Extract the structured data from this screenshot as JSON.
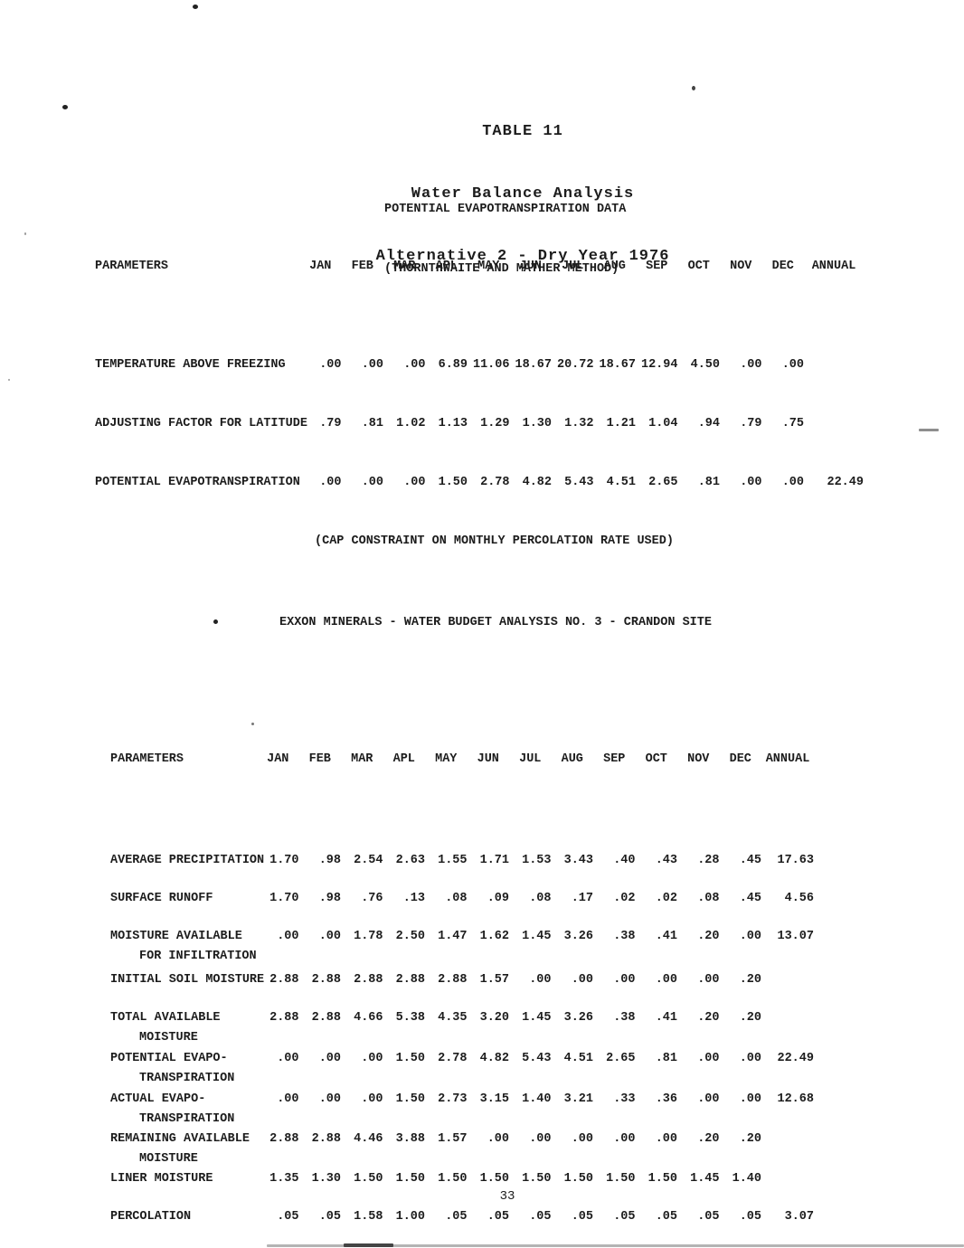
{
  "page": {
    "title_lines": [
      "TABLE 11",
      "Water Balance Analysis",
      "Alternative 2 - Dry Year 1976"
    ],
    "subtitle_lines": [
      "POTENTIAL EVAPOTRANSPIRATION DATA",
      "(THORNTHWAITE AND MATHER METHOD)"
    ],
    "note": "(CAP CONSTRAINT ON MONTHLY PERCOLATION RATE USED)",
    "section_heading": "EXXON MINERALS - WATER BUDGET ANALYSIS NO. 3 - CRANDON SITE",
    "page_number": "33",
    "ink_color": "#1c1c1c",
    "paper_color": "#ffffff"
  },
  "evapotranspiration_table": {
    "columns": [
      "PARAMETERS",
      "JAN",
      "FEB",
      "MAR",
      "APL",
      "MAY",
      "JUN",
      "JUL",
      "AUG",
      "SEP",
      "OCT",
      "NOV",
      "DEC",
      "ANNUAL"
    ],
    "rows": [
      {
        "label": [
          "TEMPERATURE ABOVE FREEZING"
        ],
        "values": [
          ".00",
          ".00",
          ".00",
          "6.89",
          "11.06",
          "18.67",
          "20.72",
          "18.67",
          "12.94",
          "4.50",
          ".00",
          ".00"
        ],
        "annual": ""
      },
      {
        "label": [
          "ADJUSTING FACTOR FOR LATITUDE"
        ],
        "values": [
          ".79",
          ".81",
          "1.02",
          "1.13",
          "1.29",
          "1.30",
          "1.32",
          "1.21",
          "1.04",
          ".94",
          ".79",
          ".75"
        ],
        "annual": ""
      },
      {
        "label": [
          "POTENTIAL EVAPOTRANSPIRATION"
        ],
        "values": [
          ".00",
          ".00",
          ".00",
          "1.50",
          "2.78",
          "4.82",
          "5.43",
          "4.51",
          "2.65",
          ".81",
          ".00",
          ".00"
        ],
        "annual": "22.49"
      }
    ]
  },
  "water_budget_table": {
    "columns": [
      "PARAMETERS",
      "JAN",
      "FEB",
      "MAR",
      "APL",
      "MAY",
      "JUN",
      "JUL",
      "AUG",
      "SEP",
      "OCT",
      "NOV",
      "DEC",
      "ANNUAL"
    ],
    "rows": [
      {
        "label": [
          "AVERAGE PRECIPITATION"
        ],
        "values": [
          "1.70",
          ".98",
          "2.54",
          "2.63",
          "1.55",
          "1.71",
          "1.53",
          "3.43",
          ".40",
          ".43",
          ".28",
          ".45"
        ],
        "annual": "17.63"
      },
      {
        "label": [
          "SURFACE RUNOFF"
        ],
        "values": [
          "1.70",
          ".98",
          ".76",
          ".13",
          ".08",
          ".09",
          ".08",
          ".17",
          ".02",
          ".02",
          ".08",
          ".45"
        ],
        "annual": "4.56"
      },
      {
        "label": [
          "MOISTURE AVAILABLE",
          "FOR INFILTRATION"
        ],
        "values": [
          ".00",
          ".00",
          "1.78",
          "2.50",
          "1.47",
          "1.62",
          "1.45",
          "3.26",
          ".38",
          ".41",
          ".20",
          ".00"
        ],
        "annual": "13.07"
      },
      {
        "label": [
          "INITIAL SOIL MOISTURE"
        ],
        "values": [
          "2.88",
          "2.88",
          "2.88",
          "2.88",
          "2.88",
          "1.57",
          ".00",
          ".00",
          ".00",
          ".00",
          ".00",
          ".20"
        ],
        "annual": ""
      },
      {
        "label": [
          "TOTAL AVAILABLE",
          "MOISTURE"
        ],
        "values": [
          "2.88",
          "2.88",
          "4.66",
          "5.38",
          "4.35",
          "3.20",
          "1.45",
          "3.26",
          ".38",
          ".41",
          ".20",
          ".20"
        ],
        "annual": ""
      },
      {
        "label": [
          "POTENTIAL EVAPO-",
          "TRANSPIRATION"
        ],
        "values": [
          ".00",
          ".00",
          ".00",
          "1.50",
          "2.78",
          "4.82",
          "5.43",
          "4.51",
          "2.65",
          ".81",
          ".00",
          ".00"
        ],
        "annual": "22.49"
      },
      {
        "label": [
          "ACTUAL EVAPO-",
          "TRANSPIRATION"
        ],
        "values": [
          ".00",
          ".00",
          ".00",
          "1.50",
          "2.73",
          "3.15",
          "1.40",
          "3.21",
          ".33",
          ".36",
          ".00",
          ".00"
        ],
        "annual": "12.68"
      },
      {
        "label": [
          "REMAINING AVAILABLE",
          "MOISTURE"
        ],
        "values": [
          "2.88",
          "2.88",
          "4.46",
          "3.88",
          "1.57",
          ".00",
          ".00",
          ".00",
          ".00",
          ".00",
          ".20",
          ".20"
        ],
        "annual": ""
      },
      {
        "label": [
          "LINER MOISTURE"
        ],
        "values": [
          "1.35",
          "1.30",
          "1.50",
          "1.50",
          "1.50",
          "1.50",
          "1.50",
          "1.50",
          "1.50",
          "1.50",
          "1.45",
          "1.40"
        ],
        "annual": ""
      },
      {
        "label": [
          "PERCOLATION"
        ],
        "values": [
          ".05",
          ".05",
          "1.58",
          "1.00",
          ".05",
          ".05",
          ".05",
          ".05",
          ".05",
          ".05",
          ".05",
          ".05"
        ],
        "annual": "3.07"
      }
    ]
  }
}
